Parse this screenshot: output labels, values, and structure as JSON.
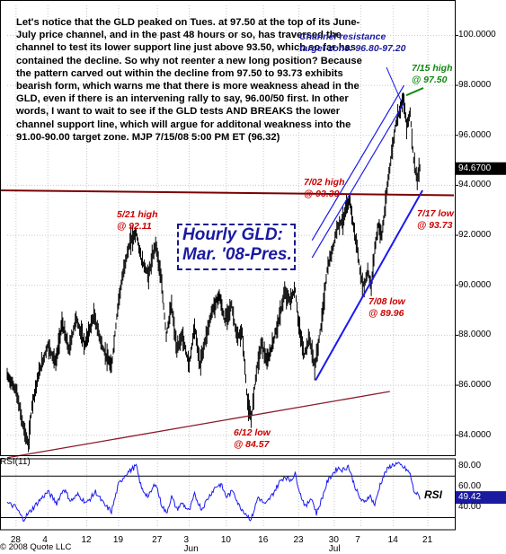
{
  "chart_data": {
    "type": "line",
    "title": "Hourly GLD:",
    "subtitle": "Mar. '08-Pres.",
    "price_axis": {
      "ylim": [
        83.2,
        101.2
      ],
      "ticks": [
        "100.0000",
        "98.0000",
        "96.0000",
        "94.0000",
        "92.0000",
        "90.0000",
        "88.0000",
        "86.0000",
        "84.0000"
      ],
      "tick_values": [
        100,
        98,
        96,
        94,
        92,
        90,
        88,
        86,
        84
      ],
      "last_price_label": "94.6700",
      "last_price": 94.67
    },
    "rsi_axis": {
      "label": "RSI(11)",
      "ticks": [
        "80.00",
        "60.00",
        "40.00"
      ],
      "tick_values": [
        80,
        60,
        40
      ],
      "ylim": [
        20,
        85
      ],
      "last_label": "49.42",
      "last_value": 49.42,
      "side_label": "RSI"
    },
    "x_ticks": [
      "28",
      "4",
      "12",
      "19",
      "27",
      "3",
      "10",
      "16",
      "23",
      "30",
      "7",
      "14",
      "21"
    ],
    "x_month_labels": [
      "Jun",
      "Jul"
    ],
    "hourly_closes_anchor": [
      [
        0,
        86.4
      ],
      [
        10,
        85.8
      ],
      [
        18,
        84.4
      ],
      [
        24,
        83.6
      ],
      [
        28,
        85.2
      ],
      [
        36,
        86.5
      ],
      [
        46,
        87.6
      ],
      [
        55,
        86.9
      ],
      [
        62,
        88.5
      ],
      [
        70,
        87.4
      ],
      [
        78,
        88.7
      ],
      [
        88,
        87.6
      ],
      [
        98,
        88.8
      ],
      [
        108,
        87.5
      ],
      [
        118,
        86.7
      ],
      [
        126,
        89.4
      ],
      [
        134,
        91.0
      ],
      [
        140,
        91.8
      ],
      [
        146,
        92.1
      ],
      [
        152,
        91.0
      ],
      [
        160,
        90.4
      ],
      [
        168,
        91.7
      ],
      [
        174,
        90.3
      ],
      [
        180,
        88.0
      ],
      [
        186,
        89.2
      ],
      [
        192,
        87.4
      ],
      [
        198,
        88.0
      ],
      [
        206,
        86.8
      ],
      [
        212,
        88.4
      ],
      [
        218,
        86.8
      ],
      [
        224,
        87.8
      ],
      [
        232,
        89.0
      ],
      [
        240,
        89.6
      ],
      [
        246,
        88.6
      ],
      [
        254,
        89.2
      ],
      [
        260,
        87.9
      ],
      [
        266,
        88.1
      ],
      [
        272,
        85.3
      ],
      [
        276,
        84.6
      ],
      [
        282,
        86.6
      ],
      [
        288,
        87.7
      ],
      [
        294,
        86.9
      ],
      [
        300,
        87.6
      ],
      [
        308,
        88.7
      ],
      [
        314,
        89.7
      ],
      [
        320,
        89.4
      ],
      [
        326,
        89.8
      ],
      [
        330,
        88.4
      ],
      [
        336,
        87.2
      ],
      [
        342,
        87.9
      ],
      [
        348,
        86.7
      ],
      [
        352,
        87.6
      ],
      [
        356,
        88.6
      ],
      [
        362,
        90.6
      ],
      [
        368,
        91.4
      ],
      [
        374,
        92.4
      ],
      [
        380,
        92.6
      ],
      [
        384,
        93.1
      ],
      [
        388,
        93.39
      ],
      [
        392,
        92.3
      ],
      [
        396,
        91.5
      ],
      [
        400,
        90.3
      ],
      [
        404,
        89.96
      ],
      [
        408,
        90.6
      ],
      [
        412,
        89.9
      ],
      [
        416,
        91.5
      ],
      [
        420,
        92.4
      ],
      [
        424,
        92.0
      ],
      [
        428,
        93.2
      ],
      [
        432,
        94.5
      ],
      [
        436,
        95.5
      ],
      [
        440,
        96.5
      ],
      [
        444,
        97.0
      ],
      [
        448,
        97.5
      ],
      [
        452,
        96.4
      ],
      [
        456,
        96.9
      ],
      [
        460,
        95.0
      ],
      [
        464,
        94.2
      ],
      [
        467,
        94.67
      ]
    ],
    "rsi_anchor": [
      [
        0,
        44
      ],
      [
        10,
        40
      ],
      [
        18,
        28
      ],
      [
        26,
        36
      ],
      [
        36,
        46
      ],
      [
        46,
        55
      ],
      [
        56,
        44
      ],
      [
        64,
        58
      ],
      [
        72,
        46
      ],
      [
        80,
        52
      ],
      [
        90,
        44
      ],
      [
        100,
        55
      ],
      [
        110,
        42
      ],
      [
        118,
        36
      ],
      [
        126,
        62
      ],
      [
        134,
        72
      ],
      [
        140,
        76
      ],
      [
        146,
        80
      ],
      [
        152,
        58
      ],
      [
        160,
        50
      ],
      [
        168,
        64
      ],
      [
        174,
        44
      ],
      [
        180,
        34
      ],
      [
        186,
        50
      ],
      [
        192,
        38
      ],
      [
        198,
        44
      ],
      [
        206,
        36
      ],
      [
        212,
        52
      ],
      [
        220,
        38
      ],
      [
        228,
        50
      ],
      [
        236,
        60
      ],
      [
        242,
        62
      ],
      [
        248,
        50
      ],
      [
        256,
        56
      ],
      [
        262,
        42
      ],
      [
        270,
        34
      ],
      [
        276,
        28
      ],
      [
        284,
        50
      ],
      [
        292,
        42
      ],
      [
        300,
        52
      ],
      [
        308,
        64
      ],
      [
        314,
        70
      ],
      [
        320,
        66
      ],
      [
        326,
        72
      ],
      [
        332,
        52
      ],
      [
        338,
        40
      ],
      [
        344,
        50
      ],
      [
        350,
        34
      ],
      [
        356,
        48
      ],
      [
        362,
        64
      ],
      [
        368,
        72
      ],
      [
        374,
        78
      ],
      [
        380,
        76
      ],
      [
        386,
        80
      ],
      [
        392,
        64
      ],
      [
        398,
        50
      ],
      [
        404,
        44
      ],
      [
        410,
        52
      ],
      [
        416,
        42
      ],
      [
        422,
        62
      ],
      [
        428,
        74
      ],
      [
        434,
        80
      ],
      [
        440,
        82
      ],
      [
        446,
        80
      ],
      [
        452,
        76
      ],
      [
        456,
        72
      ],
      [
        460,
        56
      ],
      [
        467,
        49.42
      ]
    ],
    "channel_lines": [
      {
        "name": "upper",
        "from": [
          345,
          91.8
        ],
        "to": [
          449,
          98.0
        ]
      },
      {
        "name": "upper-inner",
        "from": [
          345,
          91.1
        ],
        "to": [
          449,
          97.3
        ]
      },
      {
        "name": "lower",
        "from": [
          349,
          86.2
        ],
        "to": [
          470,
          93.8
        ]
      }
    ],
    "support_line": {
      "from": [
        0,
        83.1
      ],
      "to": [
        433,
        85.75
      ]
    },
    "horizontal_line": {
      "from": [
        0,
        93.8
      ],
      "to": [
        478,
        93.6
      ]
    },
    "grid": true
  },
  "commentary": "Let's notice that the GLD peaked on Tues. at 97.50 at the top of its June-July price channel, and in the past 48 hours or so, has traversed the channel to test its lower support line just above 93.50, which so far has contained the decline. So why not reenter a new long position? Because the pattern carved out within the decline from 97.50 to 93.73 exhibits bearish form, which warns me that there is more weakness ahead in the GLD, even if there is an intervening rally to say, 96.00/50 first. In other words, I want to wait to see if the GLD tests AND BREAKS the lower channel support line, which will argue for additonal weakness into the 91.00-90.00 target zone. MJP  7/15/08  5:00 PM ET  (96.32)",
  "annotations": {
    "channel_resistance": [
      "Channel resistance",
      "target zone: 96.80-97.20"
    ],
    "high_715": [
      "7/15 high",
      "@  97.50"
    ],
    "high_702": [
      "7/02 high",
      "@ 93.39"
    ],
    "low_717": [
      "7/17 low",
      "@ 93.73"
    ],
    "high_521": [
      "5/21 high",
      "@ 92.11"
    ],
    "low_708": [
      "7/08 low",
      "@ 89.96"
    ],
    "low_612": [
      "6/12 low",
      "@ 84.57"
    ]
  },
  "footer": "© 2008 Quote LLC",
  "colors": {
    "price": "#000000",
    "channel": "#1a1af0",
    "resistance": "#7a0000",
    "support": "#8b1a2a",
    "rsi": "#1a1af0",
    "grid": "#c8c8c8",
    "price_box": "#000000",
    "rsi_box": "#1a1aa0"
  }
}
